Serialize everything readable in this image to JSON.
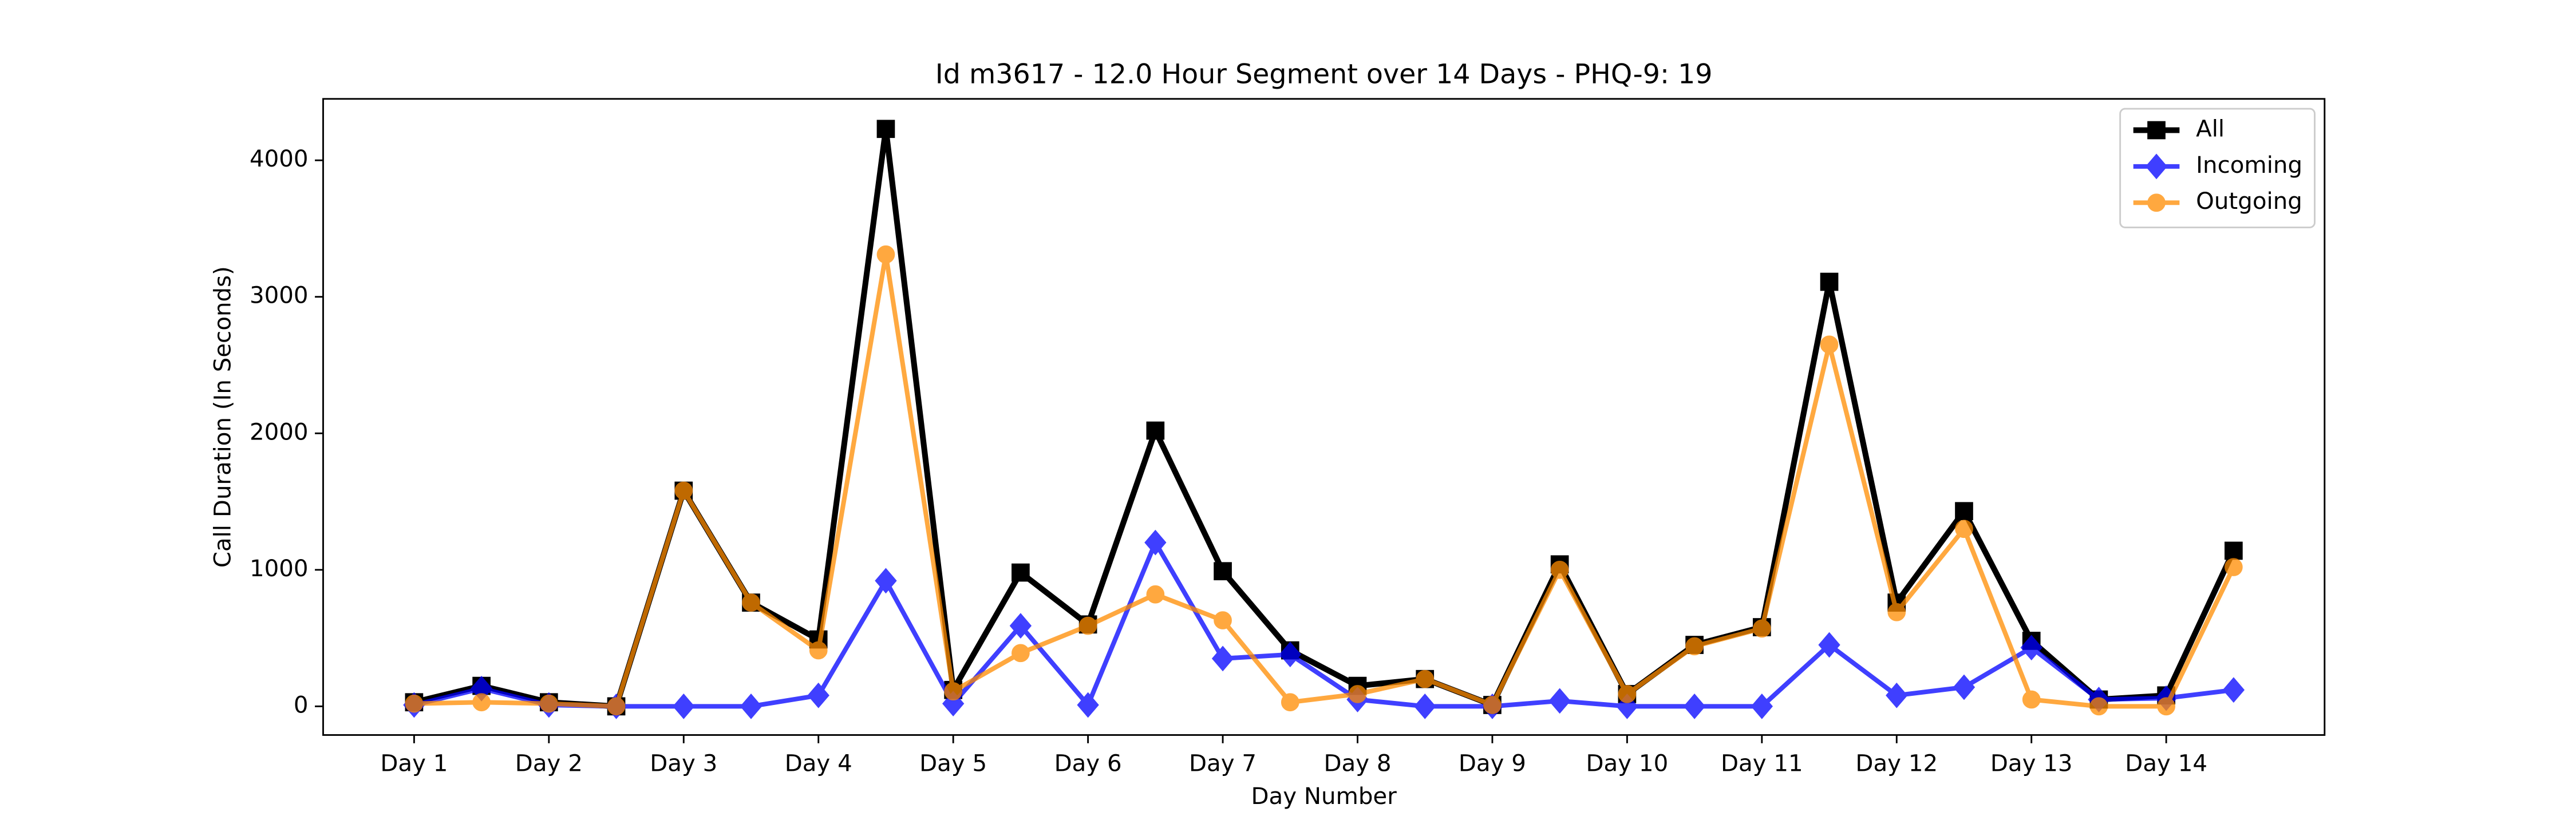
{
  "chart_data": {
    "type": "line",
    "title": "Id m3617 - 12.0 Hour Segment over 14 Days - PHQ-9: 19",
    "x_label": "Day Number",
    "y_label": "Call Duration (In Seconds)",
    "x": [
      1,
      1.5,
      2,
      2.5,
      3,
      3.5,
      4,
      4.5,
      5,
      5.5,
      6,
      6.5,
      7,
      7.5,
      8,
      8.5,
      9,
      9.5,
      10,
      10.5,
      11,
      11.5,
      12,
      12.5,
      13,
      13.5,
      14,
      14.5
    ],
    "series": [
      {
        "name": "All",
        "color": "#000000",
        "marker": "square",
        "values": [
          30,
          150,
          30,
          0,
          1580,
          760,
          490,
          4230,
          120,
          980,
          600,
          2020,
          990,
          410,
          150,
          200,
          10,
          1040,
          90,
          450,
          580,
          3110,
          760,
          1430,
          480,
          50,
          80,
          1140
        ]
      },
      {
        "name": "Incoming",
        "color": "#0000ff",
        "marker": "diamond",
        "values": [
          10,
          130,
          10,
          0,
          0,
          0,
          80,
          920,
          20,
          590,
          10,
          1200,
          350,
          380,
          50,
          0,
          0,
          40,
          0,
          0,
          0,
          450,
          80,
          140,
          430,
          50,
          60,
          120
        ]
      },
      {
        "name": "Outgoing",
        "color": "#ff8c00",
        "marker": "circle",
        "values": [
          20,
          30,
          20,
          0,
          1580,
          760,
          410,
          3310,
          110,
          390,
          590,
          820,
          630,
          30,
          90,
          200,
          10,
          1000,
          90,
          440,
          570,
          2650,
          690,
          1300,
          50,
          0,
          0,
          1020
        ]
      }
    ],
    "xlim": [
      0.325,
      15.175
    ],
    "xticks": [
      {
        "value": 1,
        "label": "Day 1"
      },
      {
        "value": 2,
        "label": "Day 2"
      },
      {
        "value": 3,
        "label": "Day 3"
      },
      {
        "value": 4,
        "label": "Day 4"
      },
      {
        "value": 5,
        "label": "Day 5"
      },
      {
        "value": 6,
        "label": "Day 6"
      },
      {
        "value": 7,
        "label": "Day 7"
      },
      {
        "value": 8,
        "label": "Day 8"
      },
      {
        "value": 9,
        "label": "Day 9"
      },
      {
        "value": 10,
        "label": "Day 10"
      },
      {
        "value": 11,
        "label": "Day 11"
      },
      {
        "value": 12,
        "label": "Day 12"
      },
      {
        "value": 13,
        "label": "Day 13"
      },
      {
        "value": 14,
        "label": "Day 14"
      }
    ],
    "ylim": [
      -210,
      4450
    ],
    "yticks": [
      0,
      1000,
      2000,
      3000,
      4000
    ],
    "legend": "upper right"
  }
}
